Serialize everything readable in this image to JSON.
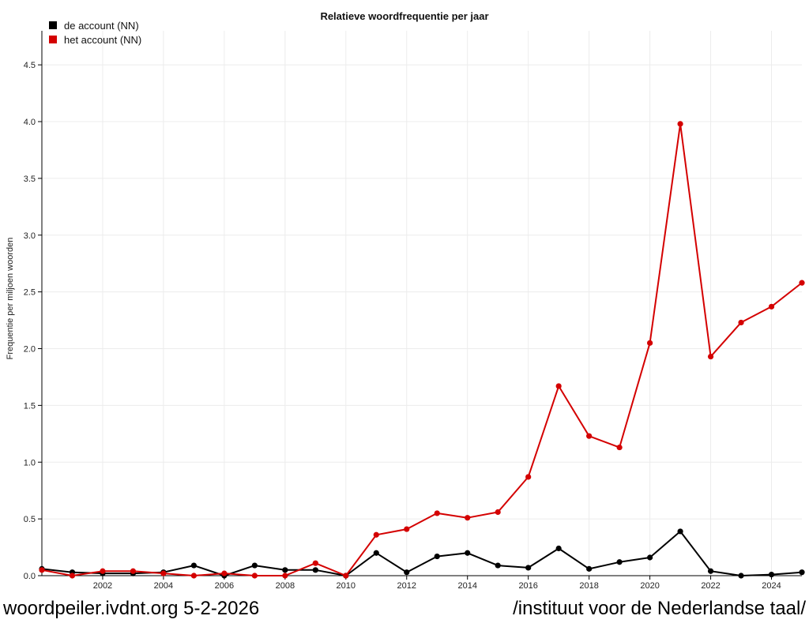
{
  "chart_data": {
    "type": "line",
    "title": "Relatieve woordfrequentie per jaar",
    "xlabel": "",
    "ylabel": "Frequentie per miljoen woorden",
    "xlim": [
      2000,
      2025
    ],
    "ylim": [
      0,
      4.8
    ],
    "x_ticks": [
      2002,
      2004,
      2006,
      2008,
      2010,
      2012,
      2014,
      2016,
      2018,
      2020,
      2022,
      2024
    ],
    "y_ticks": [
      "0.0",
      "0.5",
      "1.0",
      "1.5",
      "2.0",
      "2.5",
      "3.0",
      "3.5",
      "4.0",
      "4.5"
    ],
    "grid": true,
    "legend_position": "top-left",
    "x": [
      2000,
      2001,
      2002,
      2003,
      2004,
      2005,
      2006,
      2007,
      2008,
      2009,
      2010,
      2011,
      2012,
      2013,
      2014,
      2015,
      2016,
      2017,
      2018,
      2019,
      2020,
      2021,
      2022,
      2023,
      2024,
      2025
    ],
    "series": [
      {
        "name": "de account (NN)",
        "color": "#000000",
        "values": [
          0.06,
          0.03,
          0.02,
          0.02,
          0.03,
          0.09,
          0.0,
          0.09,
          0.05,
          0.05,
          0.0,
          0.2,
          0.03,
          0.17,
          0.2,
          0.09,
          0.07,
          0.24,
          0.06,
          0.12,
          0.16,
          0.39,
          0.04,
          0.0,
          0.01,
          0.03
        ]
      },
      {
        "name": "het account (NN)",
        "color": "#d40000",
        "values": [
          0.05,
          0.0,
          0.04,
          0.04,
          0.02,
          0.0,
          0.02,
          0.0,
          0.0,
          0.11,
          0.0,
          0.36,
          0.41,
          0.55,
          0.51,
          0.56,
          0.87,
          1.67,
          1.23,
          1.13,
          2.05,
          3.98,
          1.93,
          2.23,
          2.37,
          2.58
        ]
      }
    ]
  },
  "footer": {
    "left": "woordpeiler.ivdnt.org 5-2-2026",
    "right": "/instituut voor de Nederlandse taal/"
  }
}
